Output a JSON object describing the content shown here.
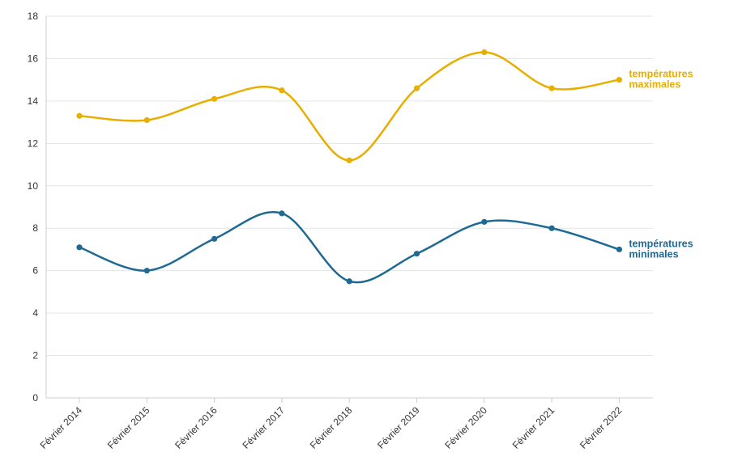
{
  "chart_data": {
    "type": "line",
    "title": "",
    "xlabel": "",
    "ylabel": "",
    "categories": [
      "Février 2014",
      "Février 2015",
      "Février 2016",
      "Février 2017",
      "Février 2018",
      "Février 2019",
      "Février 2020",
      "Février 2021",
      "Février 2022"
    ],
    "ylim": [
      0,
      18
    ],
    "yticks": [
      0,
      2,
      4,
      6,
      8,
      10,
      12,
      14,
      16,
      18
    ],
    "grid": true,
    "legend": "end-of-line labels",
    "series": [
      {
        "name": "températures maximales",
        "label_lines": [
          "températures",
          "maximales"
        ],
        "color": "#e8ae00",
        "values": [
          13.3,
          13.1,
          14.1,
          14.5,
          11.2,
          14.6,
          16.3,
          14.6,
          15.0
        ]
      },
      {
        "name": "températures minimales",
        "label_lines": [
          "températures",
          "minimales"
        ],
        "color": "#1f6a92",
        "values": [
          7.1,
          6.0,
          7.5,
          8.7,
          5.5,
          6.8,
          8.3,
          8.0,
          7.0
        ]
      }
    ]
  }
}
